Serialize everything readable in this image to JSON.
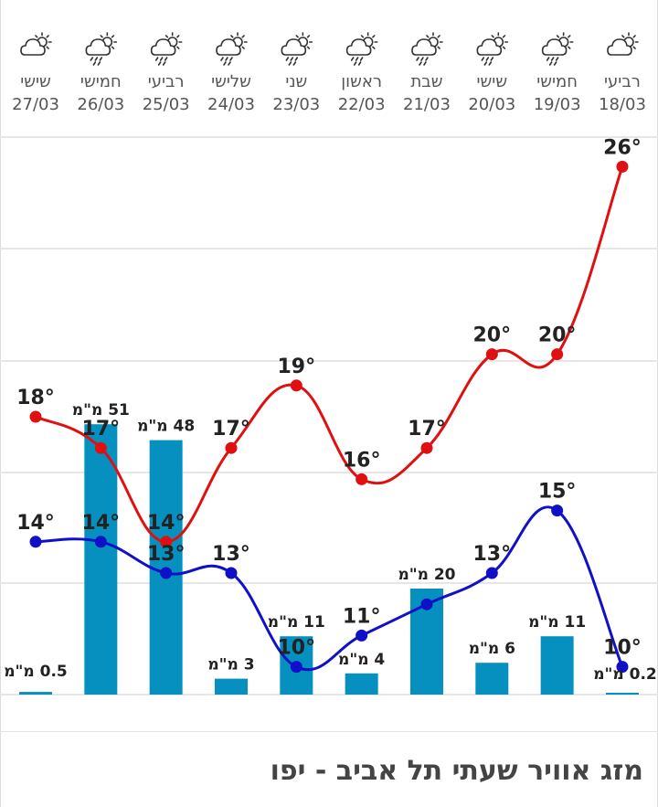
{
  "title": "מזג אוויר שעתי תל אביב - יפו",
  "colors": {
    "high": "#e01010",
    "low": "#1010c8",
    "bars": "#0590c0",
    "grid": "#e6e6e6",
    "text": "#222222",
    "header": "#555555"
  },
  "days": [
    {
      "name": "שישי",
      "date": "27/03",
      "icon": "partly-cloudy-icon"
    },
    {
      "name": "חמישי",
      "date": "26/03",
      "icon": "rain-cloud-sun-icon"
    },
    {
      "name": "רביעי",
      "date": "25/03",
      "icon": "rain-cloud-sun-icon"
    },
    {
      "name": "שלישי",
      "date": "24/03",
      "icon": "rain-cloud-sun-icon"
    },
    {
      "name": "שני",
      "date": "23/03",
      "icon": "rain-cloud-sun-icon"
    },
    {
      "name": "ראשון",
      "date": "22/03",
      "icon": "rain-cloud-sun-icon"
    },
    {
      "name": "שבת",
      "date": "21/03",
      "icon": "rain-cloud-sun-icon"
    },
    {
      "name": "שישי",
      "date": "20/03",
      "icon": "rain-cloud-sun-icon"
    },
    {
      "name": "חמישי",
      "date": "19/03",
      "icon": "rain-cloud-sun-icon"
    },
    {
      "name": "רביעי",
      "date": "18/03",
      "icon": "partly-cloudy-icon"
    }
  ],
  "chart_data": {
    "type": "line",
    "categories": [
      "27/03",
      "26/03",
      "25/03",
      "24/03",
      "23/03",
      "22/03",
      "21/03",
      "20/03",
      "19/03",
      "18/03"
    ],
    "series": [
      {
        "key": "high",
        "values": [
          18,
          17,
          14,
          17,
          19,
          16,
          17,
          20,
          20,
          26
        ],
        "labels": [
          "18°",
          "17°",
          "14°",
          "17°",
          "19°",
          "16°",
          "17°",
          "20°",
          "20°",
          "26°"
        ]
      },
      {
        "key": "low",
        "values": [
          14,
          14,
          13,
          13,
          10,
          11,
          12,
          13,
          15,
          10
        ],
        "labels": [
          "14°",
          "14°",
          "13°",
          "13°",
          "10°",
          "11°",
          "",
          "13°",
          "15°",
          "10°"
        ]
      }
    ],
    "bars": {
      "key": "precipitation",
      "values": [
        0.5,
        51,
        48,
        3,
        11,
        4,
        20,
        6,
        11,
        0.2
      ],
      "labels": [
        "0.5 מ\"מ",
        "51 מ\"מ",
        "48 מ\"מ",
        "3 מ\"מ",
        "11 מ\"מ",
        "4 מ\"מ",
        "20 מ\"מ",
        "6 מ\"מ",
        "11 מ\"מ",
        "0.2 מ\"מ"
      ]
    },
    "ylim_temp": [
      9,
      27
    ],
    "ylim_precip": [
      0,
      50
    ],
    "grid": true
  }
}
